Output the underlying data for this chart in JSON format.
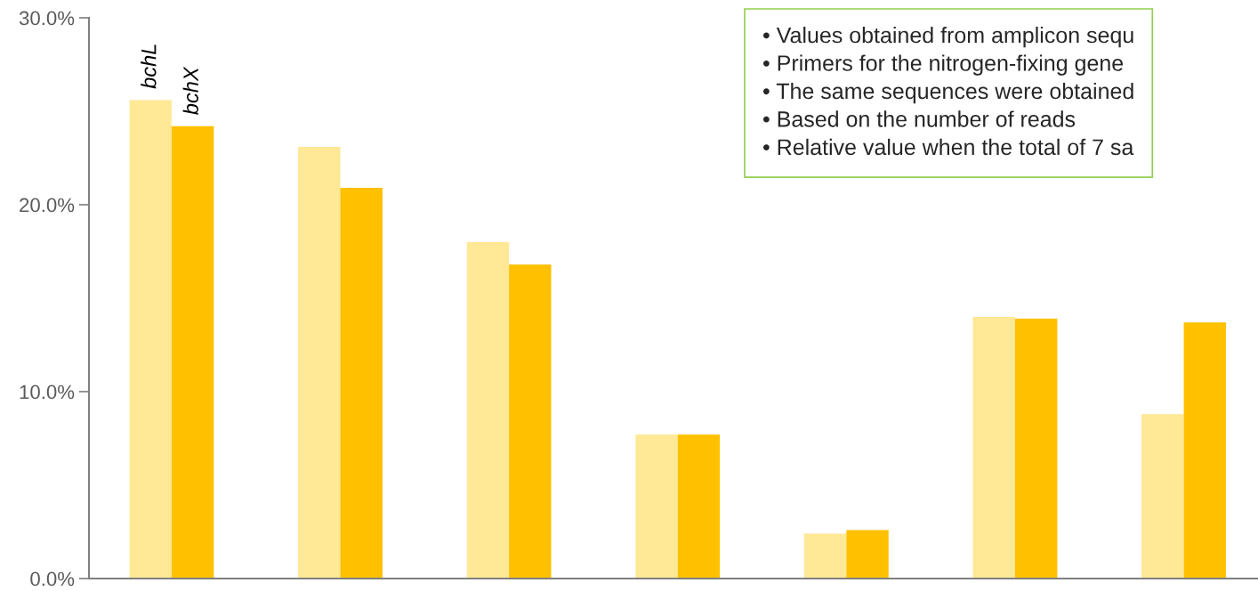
{
  "chart_data": {
    "type": "bar",
    "categories": [
      null,
      null,
      null,
      null,
      null,
      null,
      null
    ],
    "series": [
      {
        "name": "bchL",
        "color": "#ffe896",
        "values": [
          25.6,
          23.1,
          18.0,
          7.7,
          2.4,
          14.0,
          8.8
        ]
      },
      {
        "name": "bchX",
        "color": "#ffc000",
        "values": [
          24.2,
          20.9,
          16.8,
          7.7,
          2.6,
          13.9,
          13.7
        ]
      }
    ],
    "ylim": [
      0,
      30
    ],
    "yticks": [
      {
        "value": 0,
        "label": "0.0%"
      },
      {
        "value": 10,
        "label": "10.0%"
      },
      {
        "value": 20,
        "label": "20.0%"
      },
      {
        "value": 30,
        "label": "30.0%"
      }
    ],
    "grid": false,
    "legend": false,
    "annotations": [
      "• Values obtained from amplicon sequ",
      "• Primers for the nitrogen-fixing gene",
      "• The same sequences were obtained",
      "• Based on the number of reads",
      "• Relative value when the total of 7 sa"
    ]
  }
}
